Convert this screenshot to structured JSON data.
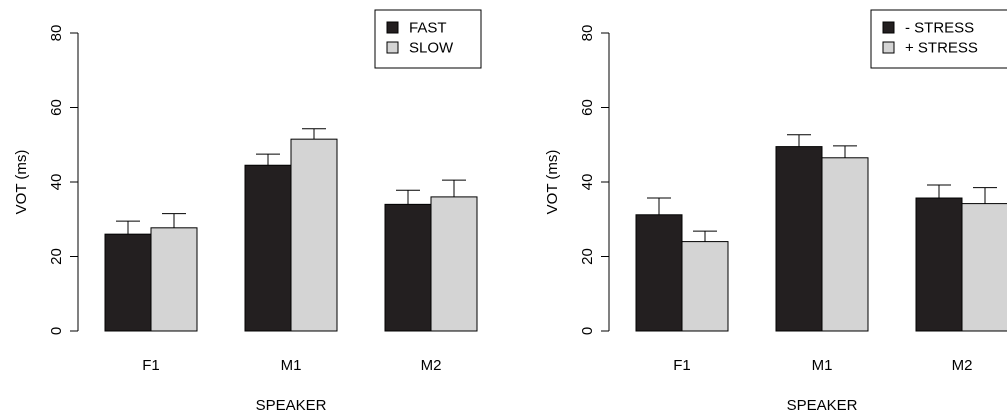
{
  "chart_data": [
    {
      "type": "bar",
      "title": "",
      "xlabel": "SPEAKER",
      "ylabel": "VOT (ms)",
      "categories": [
        "F1",
        "M1",
        "M2"
      ],
      "ylim": [
        0,
        80
      ],
      "yticks": [
        "0",
        "20",
        "40",
        "60",
        "80"
      ],
      "series": [
        {
          "name": "FAST",
          "values": [
            26,
            44.5,
            34
          ],
          "error": [
            3.5,
            3,
            3.8
          ],
          "color": "#231f20"
        },
        {
          "name": "SLOW",
          "values": [
            27.7,
            51.5,
            36
          ],
          "error": [
            3.8,
            2.8,
            4.5
          ],
          "color": "#d4d4d4"
        }
      ],
      "legend_position": "top-right",
      "grid": false
    },
    {
      "type": "bar",
      "title": "",
      "xlabel": "SPEAKER",
      "ylabel": "VOT (ms)",
      "categories": [
        "F1",
        "M1",
        "M2"
      ],
      "ylim": [
        0,
        80
      ],
      "yticks": [
        "0",
        "20",
        "40",
        "60",
        "80"
      ],
      "series": [
        {
          "name": "- STRESS",
          "values": [
            31.2,
            49.5,
            35.7
          ],
          "error": [
            4.5,
            3.2,
            3.5
          ],
          "color": "#231f20"
        },
        {
          "name": "+ STRESS",
          "values": [
            24,
            46.5,
            34.2
          ],
          "error": [
            2.8,
            3.2,
            4.3
          ],
          "color": "#d4d4d4"
        }
      ],
      "legend_position": "top-right",
      "grid": false
    }
  ]
}
